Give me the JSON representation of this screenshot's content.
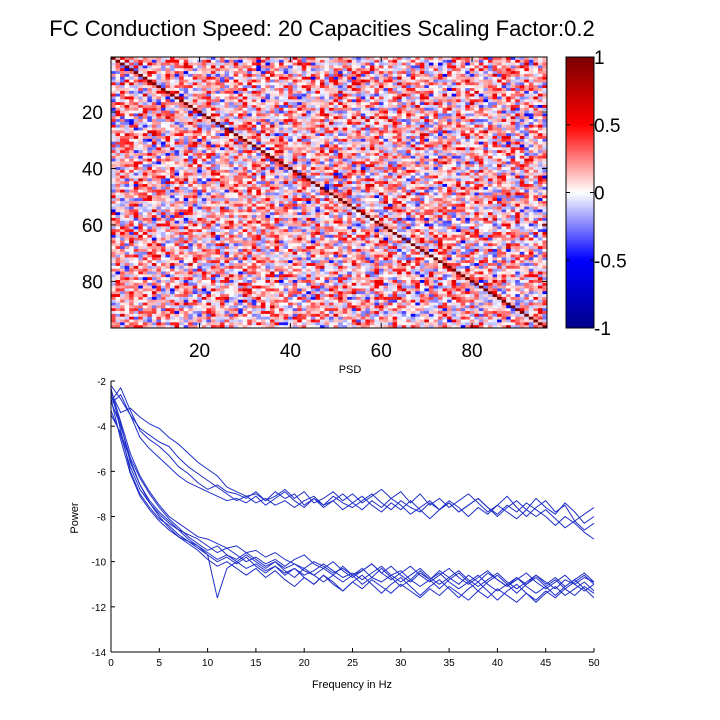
{
  "chart_data": [
    {
      "type": "heatmap",
      "title": "FC Conduction Speed: 20  Capacities Scaling Factor:0.2",
      "size": 96,
      "xlabel": "PSD",
      "xticks": [
        20,
        40,
        60,
        80
      ],
      "yticks": [
        20,
        40,
        60,
        80
      ],
      "xlim": [
        1,
        96
      ],
      "ylim": [
        1,
        96
      ],
      "diagonal_value": 1,
      "off_diagonal_range": [
        -0.5,
        0.65
      ],
      "off_diagonal_mean": 0.1,
      "colorbar": {
        "range": [
          -1,
          1
        ],
        "ticks": [
          1,
          0.5,
          0,
          -0.5,
          -1
        ],
        "tick_labels": [
          "1",
          "0.5",
          "0",
          "-0.5",
          "-1"
        ],
        "colors": {
          "min": "#00008b",
          "mid_low": "#0000ff",
          "center": "#ffffff",
          "mid_high": "#ff0000",
          "max": "#7a0000"
        }
      }
    },
    {
      "type": "line",
      "xlabel": "Frequency in Hz",
      "ylabel": "Power",
      "xlim": [
        0,
        50
      ],
      "ylim": [
        -14,
        -2
      ],
      "xticks": [
        0,
        5,
        10,
        15,
        20,
        25,
        30,
        35,
        40,
        45,
        50
      ],
      "yticks": [
        -2,
        -4,
        -6,
        -8,
        -10,
        -12,
        -14
      ],
      "line_color": "#1f2fc8",
      "x": [
        0,
        1,
        2,
        3,
        4,
        5,
        6,
        7,
        8,
        9,
        10,
        11,
        12,
        13,
        14,
        15,
        16,
        17,
        18,
        19,
        20,
        21,
        22,
        23,
        24,
        25,
        26,
        27,
        28,
        29,
        30,
        31,
        32,
        33,
        34,
        35,
        36,
        37,
        38,
        39,
        40,
        41,
        42,
        43,
        44,
        45,
        46,
        47,
        48,
        49,
        50
      ],
      "series": [
        {
          "values": [
            -2.9,
            -2.3,
            -3.3,
            -4.2,
            -4.6,
            -4.9,
            -5.3,
            -5.8,
            -6.1,
            -6.5,
            -6.8,
            -6.6,
            -6.9,
            -7.0,
            -7.2,
            -6.9,
            -7.3,
            -7.1,
            -6.8,
            -7.2,
            -6.9,
            -7.4,
            -7.2,
            -6.9,
            -7.3,
            -7.0,
            -7.4,
            -7.1,
            -6.8,
            -7.2,
            -6.9,
            -7.4,
            -7.0,
            -7.5,
            -7.2,
            -7.6,
            -7.3,
            -7.0,
            -7.4,
            -7.8,
            -7.5,
            -7.1,
            -7.6,
            -8.0,
            -7.6,
            -7.3,
            -7.8,
            -7.5,
            -8.2,
            -7.9,
            -7.6
          ]
        },
        {
          "values": [
            -2.5,
            -3.4,
            -3.2,
            -3.6,
            -3.9,
            -4.1,
            -4.5,
            -4.8,
            -5.2,
            -5.6,
            -5.9,
            -6.2,
            -6.7,
            -6.9,
            -7.1,
            -7.0,
            -7.3,
            -6.9,
            -7.2,
            -7.0,
            -7.5,
            -7.2,
            -7.6,
            -7.3,
            -7.0,
            -7.4,
            -7.7,
            -7.3,
            -7.6,
            -7.2,
            -7.5,
            -7.9,
            -7.6,
            -7.3,
            -7.7,
            -7.4,
            -7.8,
            -7.5,
            -7.2,
            -7.6,
            -8.0,
            -7.6,
            -7.3,
            -7.7,
            -7.2,
            -7.6,
            -7.9,
            -7.4,
            -7.8,
            -8.3,
            -8.0
          ]
        },
        {
          "values": [
            -3.0,
            -2.6,
            -3.5,
            -4.5,
            -5.0,
            -5.4,
            -5.8,
            -6.2,
            -6.5,
            -6.7,
            -6.9,
            -7.1,
            -7.3,
            -7.2,
            -7.4,
            -7.1,
            -7.5,
            -7.2,
            -6.9,
            -7.3,
            -7.6,
            -7.2,
            -7.5,
            -7.1,
            -7.4,
            -7.6,
            -7.3,
            -7.0,
            -7.4,
            -7.7,
            -7.3,
            -7.6,
            -7.8,
            -7.4,
            -7.7,
            -7.3,
            -7.6,
            -8.0,
            -7.6,
            -7.9,
            -7.5,
            -7.8,
            -8.1,
            -7.7,
            -8.0,
            -7.7,
            -8.1,
            -8.5,
            -8.2,
            -8.6,
            -8.3
          ]
        },
        {
          "values": [
            -2.2,
            -2.8,
            -3.5,
            -4.1,
            -4.4,
            -4.7,
            -4.9,
            -5.4,
            -5.8,
            -6.1,
            -6.4,
            -6.7,
            -7.0,
            -7.3,
            -7.1,
            -7.4,
            -7.2,
            -7.5,
            -7.3,
            -7.6,
            -7.3,
            -7.1,
            -7.5,
            -7.3,
            -7.7,
            -7.4,
            -7.1,
            -7.5,
            -7.8,
            -7.4,
            -7.7,
            -7.3,
            -7.7,
            -8.1,
            -7.7,
            -7.4,
            -7.8,
            -7.5,
            -7.2,
            -7.6,
            -7.9,
            -7.5,
            -7.8,
            -7.4,
            -7.7,
            -8.0,
            -8.4,
            -8.0,
            -8.3,
            -8.7,
            -9.0
          ]
        },
        {
          "values": [
            -2.4,
            -3.8,
            -5.2,
            -6.2,
            -6.9,
            -7.5,
            -8.0,
            -8.3,
            -8.6,
            -8.9,
            -9.0,
            -9.2,
            -9.4,
            -9.3,
            -9.6,
            -9.5,
            -9.8,
            -9.6,
            -9.9,
            -10.1,
            -10.3,
            -10.0,
            -10.2,
            -10.5,
            -10.3,
            -10.6,
            -10.4,
            -10.1,
            -10.5,
            -10.8,
            -10.5,
            -10.2,
            -10.6,
            -10.9,
            -10.6,
            -10.3,
            -10.7,
            -11.0,
            -10.7,
            -10.4,
            -10.8,
            -11.1,
            -10.8,
            -10.5,
            -10.9,
            -11.2,
            -10.9,
            -10.6,
            -11.0,
            -11.3,
            -11.0
          ]
        },
        {
          "values": [
            -2.6,
            -3.9,
            -5.6,
            -6.6,
            -7.3,
            -7.8,
            -8.2,
            -8.6,
            -8.8,
            -9.0,
            -9.3,
            -9.6,
            -9.4,
            -9.7,
            -10.0,
            -9.8,
            -10.1,
            -9.9,
            -10.2,
            -9.9,
            -9.7,
            -10.1,
            -10.3,
            -10.0,
            -10.4,
            -10.7,
            -10.4,
            -10.1,
            -10.5,
            -10.2,
            -10.6,
            -10.9,
            -10.5,
            -10.8,
            -10.4,
            -10.7,
            -11.0,
            -10.6,
            -10.9,
            -10.5,
            -10.8,
            -11.1,
            -10.7,
            -11.0,
            -10.6,
            -10.9,
            -11.2,
            -10.8,
            -11.0,
            -10.7,
            -10.9
          ]
        },
        {
          "values": [
            -2.3,
            -4.2,
            -6.0,
            -7.0,
            -7.6,
            -8.1,
            -8.4,
            -8.8,
            -9.1,
            -9.3,
            -9.6,
            -9.9,
            -9.7,
            -10.0,
            -10.3,
            -10.1,
            -10.4,
            -10.2,
            -10.5,
            -10.3,
            -10.6,
            -10.4,
            -10.1,
            -10.4,
            -10.7,
            -10.5,
            -10.8,
            -10.5,
            -10.2,
            -10.6,
            -10.9,
            -10.6,
            -10.3,
            -10.7,
            -11.0,
            -10.7,
            -10.4,
            -10.8,
            -11.1,
            -10.8,
            -10.5,
            -10.9,
            -11.2,
            -10.9,
            -10.6,
            -11.0,
            -10.7,
            -11.1,
            -10.8,
            -10.5,
            -10.9
          ]
        },
        {
          "values": [
            -2.9,
            -4.0,
            -5.4,
            -6.3,
            -7.0,
            -7.6,
            -8.1,
            -8.5,
            -8.9,
            -9.2,
            -9.5,
            -9.3,
            -9.7,
            -9.9,
            -9.6,
            -9.9,
            -10.2,
            -10.0,
            -10.3,
            -10.1,
            -10.4,
            -10.6,
            -10.3,
            -10.6,
            -10.9,
            -10.6,
            -10.3,
            -10.7,
            -10.9,
            -10.6,
            -10.4,
            -10.8,
            -11.1,
            -10.8,
            -10.5,
            -10.9,
            -11.2,
            -10.9,
            -10.6,
            -11.0,
            -11.3,
            -11.0,
            -10.7,
            -11.1,
            -11.4,
            -11.1,
            -10.8,
            -11.2,
            -10.9,
            -10.6,
            -11.0
          ]
        },
        {
          "values": [
            -3.3,
            -4.4,
            -5.8,
            -6.8,
            -7.4,
            -7.9,
            -8.3,
            -8.6,
            -9.0,
            -9.3,
            -9.7,
            -11.6,
            -10.3,
            -10.0,
            -9.7,
            -10.0,
            -10.3,
            -10.0,
            -10.4,
            -10.7,
            -10.3,
            -10.6,
            -10.9,
            -10.6,
            -10.2,
            -10.6,
            -11.0,
            -10.7,
            -10.3,
            -10.7,
            -11.1,
            -10.8,
            -10.4,
            -10.8,
            -11.2,
            -10.8,
            -10.5,
            -10.9,
            -11.3,
            -10.9,
            -10.6,
            -11.0,
            -11.4,
            -11.0,
            -10.7,
            -11.1,
            -11.5,
            -11.1,
            -10.8,
            -11.2,
            -11.6
          ]
        },
        {
          "values": [
            -2.8,
            -4.6,
            -6.1,
            -7.1,
            -7.7,
            -8.2,
            -8.6,
            -8.9,
            -9.2,
            -9.5,
            -9.9,
            -10.2,
            -10.0,
            -10.3,
            -10.6,
            -10.3,
            -10.7,
            -10.4,
            -10.8,
            -11.1,
            -10.7,
            -11.0,
            -10.6,
            -10.9,
            -11.3,
            -10.9,
            -10.6,
            -11.0,
            -11.4,
            -11.0,
            -10.7,
            -11.1,
            -11.5,
            -11.1,
            -10.8,
            -11.2,
            -11.6,
            -11.2,
            -10.9,
            -11.3,
            -11.7,
            -11.3,
            -11.0,
            -11.4,
            -11.8,
            -11.4,
            -11.1,
            -11.5,
            -11.2,
            -10.9,
            -11.3
          ]
        },
        {
          "values": [
            -3.5,
            -4.3,
            -5.5,
            -6.6,
            -7.4,
            -8.0,
            -8.5,
            -8.9,
            -9.1,
            -9.4,
            -9.7,
            -10.0,
            -9.8,
            -10.1,
            -9.8,
            -10.2,
            -10.5,
            -10.2,
            -10.6,
            -10.3,
            -10.7,
            -11.0,
            -10.6,
            -11.0,
            -11.3,
            -10.9,
            -11.2,
            -10.8,
            -11.1,
            -11.4,
            -11.0,
            -11.3,
            -11.6,
            -11.2,
            -11.5,
            -11.1,
            -11.4,
            -11.7,
            -11.3,
            -11.6,
            -11.2,
            -11.5,
            -11.8,
            -11.4,
            -11.7,
            -11.3,
            -11.6,
            -11.2,
            -11.5,
            -11.1,
            -11.4
          ]
        }
      ]
    }
  ]
}
